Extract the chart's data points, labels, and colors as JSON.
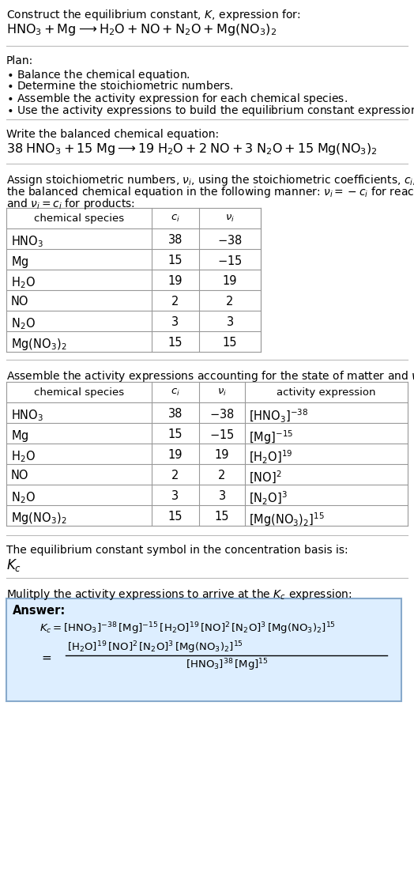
{
  "bg_color": "#ffffff",
  "text_color": "#000000",
  "table_border_color": "#999999",
  "answer_box_facecolor": "#ddeeff",
  "answer_box_edgecolor": "#88aacc",
  "title_line1": "Construct the equilibrium constant, $K$, expression for:",
  "title_line2": "$\\mathrm{HNO_3 + Mg} \\longrightarrow \\mathrm{H_2O + NO + N_2O + Mg(NO_3)_2}$",
  "plan_header": "Plan:",
  "plan_items": [
    "$\\bullet$ Balance the chemical equation.",
    "$\\bullet$ Determine the stoichiometric numbers.",
    "$\\bullet$ Assemble the activity expression for each chemical species.",
    "$\\bullet$ Use the activity expressions to build the equilibrium constant expression."
  ],
  "balanced_header": "Write the balanced chemical equation:",
  "balanced_eq": "$\\mathrm{38\\;HNO_3 + 15\\;Mg} \\longrightarrow \\mathrm{19\\;H_2O + 2\\;NO + 3\\;N_2O + 15\\;Mg(NO_3)_2}$",
  "stoich_para_line1": "Assign stoichiometric numbers, $\\nu_i$, using the stoichiometric coefficients, $c_i$, from",
  "stoich_para_line2": "the balanced chemical equation in the following manner: $\\nu_i = -c_i$ for reactants",
  "stoich_para_line3": "and $\\nu_i = c_i$ for products:",
  "table1_headers": [
    "chemical species",
    "$c_i$",
    "$\\nu_i$"
  ],
  "table1_rows": [
    [
      "$\\mathrm{HNO_3}$",
      "38",
      "$-38$"
    ],
    [
      "$\\mathrm{Mg}$",
      "15",
      "$-15$"
    ],
    [
      "$\\mathrm{H_2O}$",
      "19",
      "19"
    ],
    [
      "NO",
      "2",
      "2"
    ],
    [
      "$\\mathrm{N_2O}$",
      "3",
      "3"
    ],
    [
      "$\\mathrm{Mg(NO_3)_2}$",
      "15",
      "15"
    ]
  ],
  "activity_header": "Assemble the activity expressions accounting for the state of matter and $\\nu_i$:",
  "table2_headers": [
    "chemical species",
    "$c_i$",
    "$\\nu_i$",
    "activity expression"
  ],
  "table2_rows": [
    [
      "$\\mathrm{HNO_3}$",
      "38",
      "$-38$",
      "$[\\mathrm{HNO_3}]^{-38}$"
    ],
    [
      "$\\mathrm{Mg}$",
      "15",
      "$-15$",
      "$[\\mathrm{Mg}]^{-15}$"
    ],
    [
      "$\\mathrm{H_2O}$",
      "19",
      "19",
      "$[\\mathrm{H_2O}]^{19}$"
    ],
    [
      "NO",
      "2",
      "2",
      "$[\\mathrm{NO}]^{2}$"
    ],
    [
      "$\\mathrm{N_2O}$",
      "3",
      "3",
      "$[\\mathrm{N_2O}]^{3}$"
    ],
    [
      "$\\mathrm{Mg(NO_3)_2}$",
      "15",
      "15",
      "$[\\mathrm{Mg(NO_3)_2}]^{15}$"
    ]
  ],
  "kc_header": "The equilibrium constant symbol in the concentration basis is:",
  "kc_symbol": "$K_c$",
  "multiply_header": "Mulitply the activity expressions to arrive at the $K_c$ expression:",
  "answer_label": "Answer:",
  "kc_eq1": "$K_c = [\\mathrm{HNO_3}]^{-38}\\,[\\mathrm{Mg}]^{-15}\\,[\\mathrm{H_2O}]^{19}\\,[\\mathrm{NO}]^{2}\\,[\\mathrm{N_2O}]^{3}\\,[\\mathrm{Mg(NO_3)_2}]^{15}$",
  "kc_eq2_num": "$[\\mathrm{H_2O}]^{19}\\,[\\mathrm{NO}]^{2}\\,[\\mathrm{N_2O}]^{3}\\,[\\mathrm{Mg(NO_3)_2}]^{15}$",
  "kc_eq2_den": "$[\\mathrm{HNO_3}]^{38}\\,[\\mathrm{Mg}]^{15}$"
}
